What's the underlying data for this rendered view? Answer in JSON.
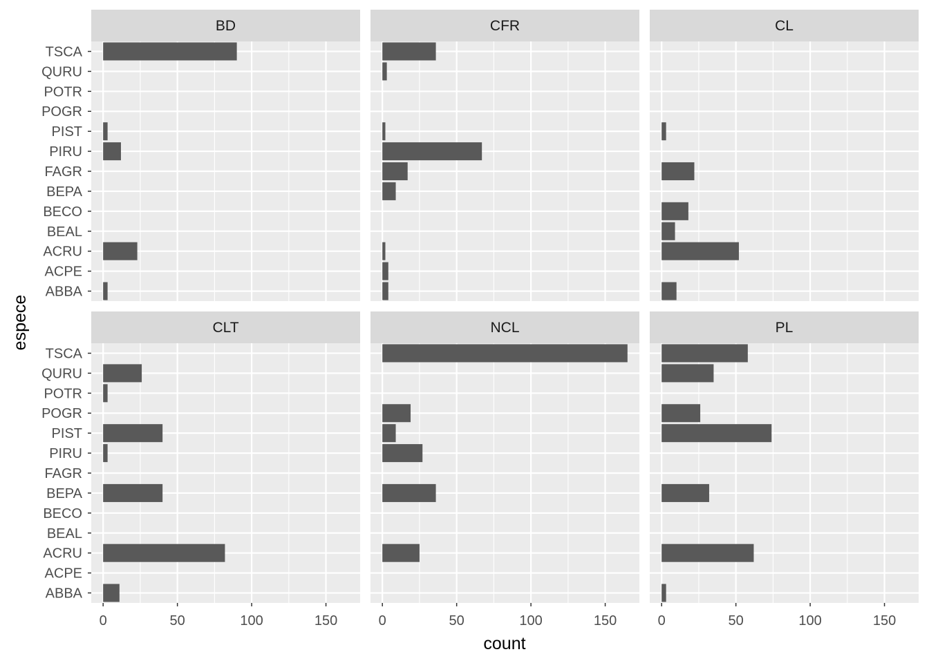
{
  "chart_data": {
    "type": "bar",
    "orientation": "horizontal",
    "facet_layout": "2 rows x 3 columns",
    "xlabel": "count",
    "ylabel": "espece",
    "xlim": [
      -8,
      173
    ],
    "x_ticks": [
      0,
      50,
      100,
      150
    ],
    "grid": true,
    "categories": [
      "ABBA",
      "ACPE",
      "ACRU",
      "BEAL",
      "BECO",
      "BEPA",
      "FAGR",
      "PIRU",
      "PIST",
      "POGR",
      "POTR",
      "QURU",
      "TSCA"
    ],
    "colors": {
      "bar": "#595959",
      "panel_bg": "#ebebeb",
      "strip_bg": "#d9d9d9",
      "grid": "#ffffff"
    },
    "facets": [
      {
        "name": "BD",
        "values": [
          3,
          0,
          23,
          0,
          0,
          0,
          0,
          12,
          3,
          0,
          0,
          0,
          90
        ]
      },
      {
        "name": "CFR",
        "values": [
          4,
          4,
          2,
          0,
          0,
          9,
          17,
          67,
          2,
          0,
          0,
          3,
          36
        ]
      },
      {
        "name": "CL",
        "values": [
          10,
          0,
          52,
          9,
          18,
          0,
          22,
          0,
          3,
          0,
          0,
          0,
          0
        ]
      },
      {
        "name": "CLT",
        "values": [
          11,
          0,
          82,
          0,
          0,
          40,
          0,
          3,
          40,
          0,
          3,
          26,
          0
        ]
      },
      {
        "name": "NCL",
        "values": [
          0,
          0,
          25,
          0,
          0,
          36,
          0,
          27,
          9,
          19,
          0,
          0,
          165
        ]
      },
      {
        "name": "PL",
        "values": [
          3,
          0,
          62,
          0,
          0,
          32,
          0,
          0,
          74,
          26,
          0,
          35,
          58
        ]
      }
    ]
  }
}
